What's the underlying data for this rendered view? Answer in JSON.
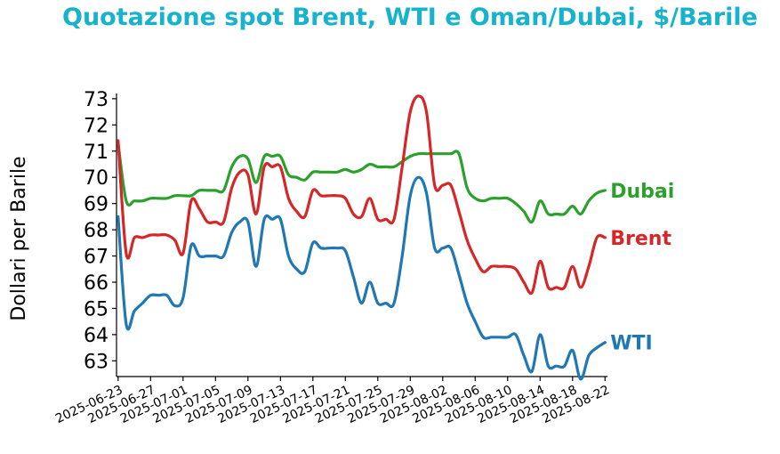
{
  "chart_data": {
    "type": "line",
    "title": "Quotazione spot Brent, WTI e Oman/Dubai, $/Barile",
    "title_color": "#17b2cc",
    "ylabel": "Dollari per Barile",
    "xlabel": "",
    "ylim": [
      62.4,
      73.2
    ],
    "yticks": [
      "63",
      "64",
      "65",
      "66",
      "67",
      "68",
      "69",
      "70",
      "71",
      "72",
      "73"
    ],
    "xlim": [
      "2025-06-23",
      "2025-08-22"
    ],
    "xticks": [
      "2025-06-23",
      "2025-06-27",
      "2025-07-01",
      "2025-07-05",
      "2025-07-09",
      "2025-07-13",
      "2025-07-17",
      "2025-07-21",
      "2025-07-25",
      "2025-07-29",
      "2025-08-02",
      "2025-08-06",
      "2025-08-10",
      "2025-08-14",
      "2025-08-18",
      "2025-08-22"
    ],
    "grid": false,
    "legend": "inline labels at line ends",
    "series": [
      {
        "name": "Dubai",
        "color": "#2ca02c",
        "points": [
          [
            "2025-06-23",
            71.3
          ],
          [
            "2025-06-24",
            69.1
          ],
          [
            "2025-06-25",
            69.1
          ],
          [
            "2025-06-26",
            69.1
          ],
          [
            "2025-06-27",
            69.2
          ],
          [
            "2025-06-28",
            69.2
          ],
          [
            "2025-06-29",
            69.2
          ],
          [
            "2025-06-30",
            69.3
          ],
          [
            "2025-07-01",
            69.3
          ],
          [
            "2025-07-02",
            69.3
          ],
          [
            "2025-07-03",
            69.5
          ],
          [
            "2025-07-04",
            69.5
          ],
          [
            "2025-07-05",
            69.5
          ],
          [
            "2025-07-06",
            69.5
          ],
          [
            "2025-07-07",
            70.4
          ],
          [
            "2025-07-08",
            70.8
          ],
          [
            "2025-07-09",
            70.7
          ],
          [
            "2025-07-10",
            69.8
          ],
          [
            "2025-07-11",
            70.8
          ],
          [
            "2025-07-12",
            70.8
          ],
          [
            "2025-07-13",
            70.8
          ],
          [
            "2025-07-14",
            70.1
          ],
          [
            "2025-07-15",
            70.0
          ],
          [
            "2025-07-16",
            69.9
          ],
          [
            "2025-07-17",
            70.2
          ],
          [
            "2025-07-18",
            70.2
          ],
          [
            "2025-07-19",
            70.2
          ],
          [
            "2025-07-20",
            70.2
          ],
          [
            "2025-07-21",
            70.3
          ],
          [
            "2025-07-22",
            70.2
          ],
          [
            "2025-07-23",
            70.3
          ],
          [
            "2025-07-24",
            70.5
          ],
          [
            "2025-07-25",
            70.4
          ],
          [
            "2025-07-26",
            70.4
          ],
          [
            "2025-07-27",
            70.4
          ],
          [
            "2025-07-28",
            70.6
          ],
          [
            "2025-07-29",
            70.8
          ],
          [
            "2025-07-30",
            70.9
          ],
          [
            "2025-07-31",
            70.9
          ],
          [
            "2025-08-01",
            70.9
          ],
          [
            "2025-08-02",
            70.9
          ],
          [
            "2025-08-03",
            70.9
          ],
          [
            "2025-08-04",
            70.9
          ],
          [
            "2025-08-05",
            69.6
          ],
          [
            "2025-08-06",
            69.2
          ],
          [
            "2025-08-07",
            69.1
          ],
          [
            "2025-08-08",
            69.2
          ],
          [
            "2025-08-09",
            69.2
          ],
          [
            "2025-08-10",
            69.2
          ],
          [
            "2025-08-11",
            69.0
          ],
          [
            "2025-08-12",
            68.7
          ],
          [
            "2025-08-13",
            68.3
          ],
          [
            "2025-08-14",
            69.1
          ],
          [
            "2025-08-15",
            68.6
          ],
          [
            "2025-08-16",
            68.6
          ],
          [
            "2025-08-17",
            68.6
          ],
          [
            "2025-08-18",
            68.9
          ],
          [
            "2025-08-19",
            68.6
          ],
          [
            "2025-08-20",
            69.1
          ],
          [
            "2025-08-21",
            69.4
          ],
          [
            "2025-08-22",
            69.5
          ]
        ]
      },
      {
        "name": "Brent",
        "color": "#d62728",
        "points": [
          [
            "2025-06-23",
            71.4
          ],
          [
            "2025-06-24",
            67.1
          ],
          [
            "2025-06-25",
            67.7
          ],
          [
            "2025-06-26",
            67.7
          ],
          [
            "2025-06-27",
            67.8
          ],
          [
            "2025-06-28",
            67.8
          ],
          [
            "2025-06-29",
            67.8
          ],
          [
            "2025-06-30",
            67.6
          ],
          [
            "2025-07-01",
            67.1
          ],
          [
            "2025-07-02",
            69.1
          ],
          [
            "2025-07-03",
            68.8
          ],
          [
            "2025-07-04",
            68.3
          ],
          [
            "2025-07-05",
            68.3
          ],
          [
            "2025-07-06",
            68.3
          ],
          [
            "2025-07-07",
            69.6
          ],
          [
            "2025-07-08",
            70.2
          ],
          [
            "2025-07-09",
            70.1
          ],
          [
            "2025-07-10",
            68.6
          ],
          [
            "2025-07-11",
            70.4
          ],
          [
            "2025-07-12",
            70.4
          ],
          [
            "2025-07-13",
            70.4
          ],
          [
            "2025-07-14",
            69.2
          ],
          [
            "2025-07-15",
            68.7
          ],
          [
            "2025-07-16",
            68.5
          ],
          [
            "2025-07-17",
            69.5
          ],
          [
            "2025-07-18",
            69.3
          ],
          [
            "2025-07-19",
            69.3
          ],
          [
            "2025-07-20",
            69.3
          ],
          [
            "2025-07-21",
            69.2
          ],
          [
            "2025-07-22",
            68.6
          ],
          [
            "2025-07-23",
            68.5
          ],
          [
            "2025-07-24",
            69.2
          ],
          [
            "2025-07-25",
            68.4
          ],
          [
            "2025-07-26",
            68.4
          ],
          [
            "2025-07-27",
            68.4
          ],
          [
            "2025-07-28",
            70.4
          ],
          [
            "2025-07-29",
            72.5
          ],
          [
            "2025-07-30",
            73.1
          ],
          [
            "2025-07-31",
            72.5
          ],
          [
            "2025-08-01",
            69.7
          ],
          [
            "2025-08-02",
            69.7
          ],
          [
            "2025-08-03",
            69.7
          ],
          [
            "2025-08-04",
            68.7
          ],
          [
            "2025-08-05",
            67.6
          ],
          [
            "2025-08-06",
            66.9
          ],
          [
            "2025-08-07",
            66.4
          ],
          [
            "2025-08-08",
            66.6
          ],
          [
            "2025-08-09",
            66.6
          ],
          [
            "2025-08-10",
            66.6
          ],
          [
            "2025-08-11",
            66.5
          ],
          [
            "2025-08-12",
            66.0
          ],
          [
            "2025-08-13",
            65.6
          ],
          [
            "2025-08-14",
            66.8
          ],
          [
            "2025-08-15",
            65.8
          ],
          [
            "2025-08-16",
            65.8
          ],
          [
            "2025-08-17",
            65.8
          ],
          [
            "2025-08-18",
            66.6
          ],
          [
            "2025-08-19",
            65.8
          ],
          [
            "2025-08-20",
            66.6
          ],
          [
            "2025-08-21",
            67.7
          ],
          [
            "2025-08-22",
            67.7
          ]
        ]
      },
      {
        "name": "WTI",
        "color": "#1f77b4",
        "points": [
          [
            "2025-06-23",
            68.5
          ],
          [
            "2025-06-24",
            64.4
          ],
          [
            "2025-06-25",
            64.9
          ],
          [
            "2025-06-26",
            65.2
          ],
          [
            "2025-06-27",
            65.5
          ],
          [
            "2025-06-28",
            65.5
          ],
          [
            "2025-06-29",
            65.5
          ],
          [
            "2025-06-30",
            65.1
          ],
          [
            "2025-07-01",
            65.4
          ],
          [
            "2025-07-02",
            67.4
          ],
          [
            "2025-07-03",
            67.0
          ],
          [
            "2025-07-04",
            67.0
          ],
          [
            "2025-07-05",
            67.0
          ],
          [
            "2025-07-06",
            67.0
          ],
          [
            "2025-07-07",
            67.9
          ],
          [
            "2025-07-08",
            68.3
          ],
          [
            "2025-07-09",
            68.3
          ],
          [
            "2025-07-10",
            66.6
          ],
          [
            "2025-07-11",
            68.4
          ],
          [
            "2025-07-12",
            68.4
          ],
          [
            "2025-07-13",
            68.4
          ],
          [
            "2025-07-14",
            67.0
          ],
          [
            "2025-07-15",
            66.5
          ],
          [
            "2025-07-16",
            66.4
          ],
          [
            "2025-07-17",
            67.5
          ],
          [
            "2025-07-18",
            67.3
          ],
          [
            "2025-07-19",
            67.3
          ],
          [
            "2025-07-20",
            67.3
          ],
          [
            "2025-07-21",
            67.2
          ],
          [
            "2025-07-22",
            66.2
          ],
          [
            "2025-07-23",
            65.2
          ],
          [
            "2025-07-24",
            66.0
          ],
          [
            "2025-07-25",
            65.2
          ],
          [
            "2025-07-26",
            65.2
          ],
          [
            "2025-07-27",
            65.2
          ],
          [
            "2025-07-28",
            67.0
          ],
          [
            "2025-07-29",
            69.3
          ],
          [
            "2025-07-30",
            70.0
          ],
          [
            "2025-07-31",
            69.4
          ],
          [
            "2025-08-01",
            67.3
          ],
          [
            "2025-08-02",
            67.3
          ],
          [
            "2025-08-03",
            67.3
          ],
          [
            "2025-08-04",
            66.3
          ],
          [
            "2025-08-05",
            65.2
          ],
          [
            "2025-08-06",
            64.5
          ],
          [
            "2025-08-07",
            63.9
          ],
          [
            "2025-08-08",
            63.9
          ],
          [
            "2025-08-09",
            63.9
          ],
          [
            "2025-08-10",
            63.9
          ],
          [
            "2025-08-11",
            64.0
          ],
          [
            "2025-08-12",
            63.2
          ],
          [
            "2025-08-13",
            62.6
          ],
          [
            "2025-08-14",
            64.0
          ],
          [
            "2025-08-15",
            62.8
          ],
          [
            "2025-08-16",
            62.8
          ],
          [
            "2025-08-17",
            62.8
          ],
          [
            "2025-08-18",
            63.4
          ],
          [
            "2025-08-19",
            62.3
          ],
          [
            "2025-08-20",
            63.2
          ],
          [
            "2025-08-21",
            63.5
          ],
          [
            "2025-08-22",
            63.7
          ]
        ]
      }
    ]
  }
}
